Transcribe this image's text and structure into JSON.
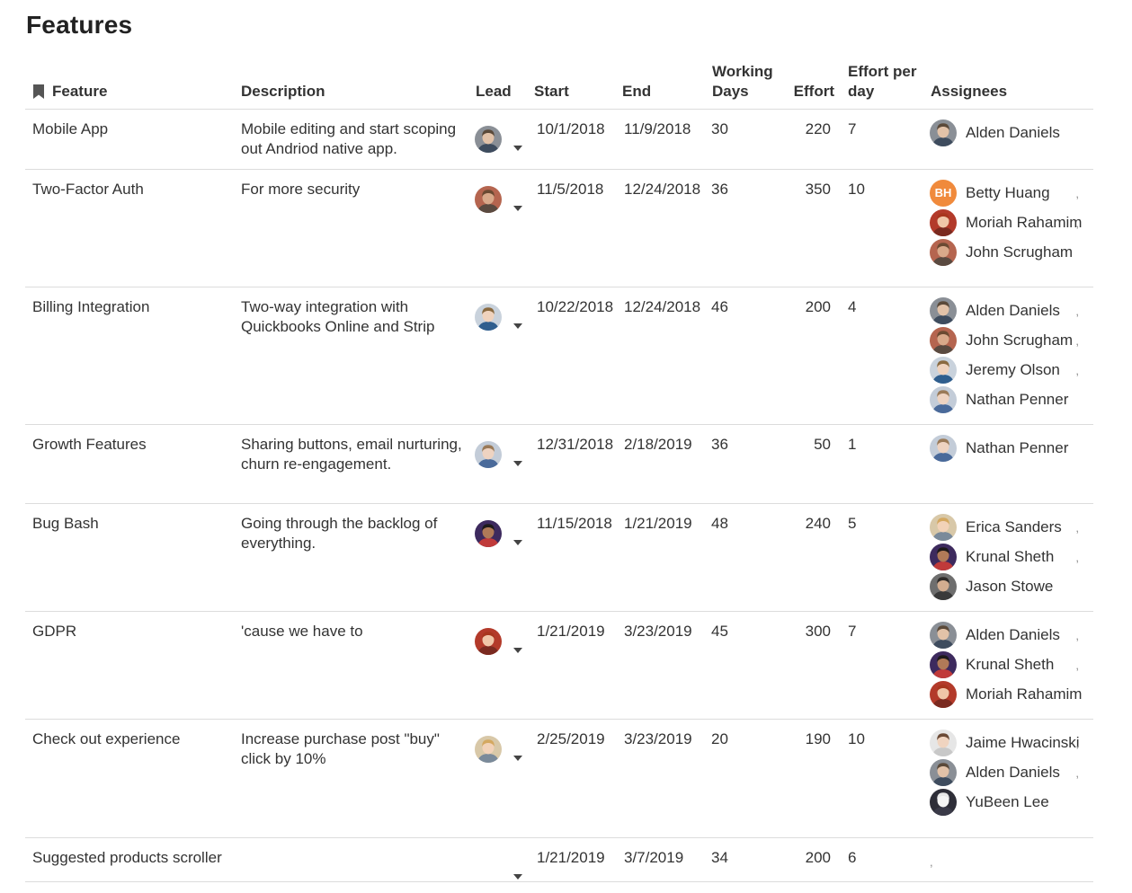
{
  "page": {
    "title": "Features"
  },
  "columns": {
    "feature": "Feature",
    "description": "Description",
    "lead": "Lead",
    "start": "Start",
    "end": "End",
    "working_days": "Working Days",
    "effort": "Effort",
    "effort_per_day": "Effort per day",
    "assignees": "Assignees"
  },
  "rows": [
    {
      "feature": "Mobile App",
      "description": "Mobile editing and start scoping out Andriod native app.",
      "lead": "alden",
      "start": "10/1/2018",
      "end": "11/9/2018",
      "working_days": "30",
      "effort": "220",
      "effort_per_day": "7",
      "assignees": [
        {
          "name": "Alden Daniels",
          "avatar": "alden"
        }
      ]
    },
    {
      "feature": "Two-Factor Auth",
      "description": "For more security",
      "lead": "john",
      "start": "11/5/2018",
      "end": "12/24/2018",
      "working_days": "36",
      "effort": "350",
      "effort_per_day": "10",
      "assignees": [
        {
          "name": "Betty Huang",
          "avatar": "initials",
          "initials": "BH"
        },
        {
          "name": "Moriah Rahamim",
          "avatar": "moriah"
        },
        {
          "name": "John Scrugham",
          "avatar": "john"
        }
      ]
    },
    {
      "feature": "Billing Integration",
      "description": "Two-way integration with Quickbooks Online and Strip",
      "lead": "jeremy",
      "start": "10/22/2018",
      "end": "12/24/2018",
      "working_days": "46",
      "effort": "200",
      "effort_per_day": "4",
      "assignees": [
        {
          "name": "Alden Daniels",
          "avatar": "alden"
        },
        {
          "name": "John Scrugham",
          "avatar": "john"
        },
        {
          "name": "Jeremy Olson",
          "avatar": "jeremy"
        },
        {
          "name": "Nathan Penner",
          "avatar": "nathan"
        }
      ]
    },
    {
      "feature": "Growth Features",
      "description": "Sharing buttons, email nurturing, churn re-engagement.",
      "lead": "nathan",
      "start": "12/31/2018",
      "end": "2/18/2019",
      "working_days": "36",
      "effort": "50",
      "effort_per_day": "1",
      "assignees": [
        {
          "name": "Nathan Penner",
          "avatar": "nathan"
        }
      ]
    },
    {
      "feature": "Bug Bash",
      "description": "Going through the backlog of everything.",
      "lead": "krunal",
      "start": "11/15/2018",
      "end": "1/21/2019",
      "working_days": "48",
      "effort": "240",
      "effort_per_day": "5",
      "assignees": [
        {
          "name": "Erica Sanders",
          "avatar": "erica"
        },
        {
          "name": "Krunal Sheth",
          "avatar": "krunal"
        },
        {
          "name": "Jason Stowe",
          "avatar": "jason"
        }
      ]
    },
    {
      "feature": "GDPR",
      "description": "'cause we have to",
      "lead": "moriah",
      "start": "1/21/2019",
      "end": "3/23/2019",
      "working_days": "45",
      "effort": "300",
      "effort_per_day": "7",
      "assignees": [
        {
          "name": "Alden Daniels",
          "avatar": "alden"
        },
        {
          "name": "Krunal Sheth",
          "avatar": "krunal"
        },
        {
          "name": "Moriah Rahamim",
          "avatar": "moriah"
        }
      ]
    },
    {
      "feature": "Check out experience",
      "description": "Increase purchase post \"buy\" click by 10%",
      "lead": "erica",
      "start": "2/25/2019",
      "end": "3/23/2019",
      "working_days": "20",
      "effort": "190",
      "effort_per_day": "10",
      "assignees": [
        {
          "name": "Jaime Hwacinski",
          "avatar": "jaime"
        },
        {
          "name": "Alden Daniels",
          "avatar": "alden"
        },
        {
          "name": "YuBeen Lee",
          "avatar": "yubeen"
        }
      ]
    },
    {
      "feature": "Suggested products scroller",
      "description": "",
      "lead": "",
      "start": "1/21/2019",
      "end": "3/7/2019",
      "working_days": "34",
      "effort": "200",
      "effort_per_day": "6",
      "assignees": []
    }
  ],
  "avatar_colors": {
    "alden": {
      "bg": "#8a8f96",
      "skin": "#e2c2a8",
      "hair": "#5b4a3a",
      "shirt": "#3e4c5e"
    },
    "john": {
      "bg": "#b5654f",
      "skin": "#d9a98a",
      "hair": "#6b4a32",
      "shirt": "#5a4a40"
    },
    "jeremy": {
      "bg": "#c9d2dc",
      "skin": "#efd2bd",
      "hair": "#8a6a40",
      "shirt": "#2f5e8e"
    },
    "nathan": {
      "bg": "#c3ccd8",
      "skin": "#eed3c1",
      "hair": "#9a7a58",
      "shirt": "#4a6a9a"
    },
    "krunal": {
      "bg": "#3d2a5e",
      "skin": "#b07a58",
      "hair": "#1e1a1a",
      "shirt": "#c03a3a"
    },
    "moriah": {
      "bg": "#b33a2a",
      "skin": "#f0c6a8",
      "hair": "#a8361e",
      "shirt": "#7a2a20"
    },
    "erica": {
      "bg": "#d8c8a8",
      "skin": "#f2d2b8",
      "hair": "#d4a860",
      "shirt": "#7a8a9a"
    },
    "jason": {
      "bg": "#6e6e6e",
      "skin": "#d3ad90",
      "hair": "#2e2a28",
      "shirt": "#3a3a3a"
    },
    "jaime": {
      "bg": "#e6e6e6",
      "skin": "#f0d4c0",
      "hair": "#6b4a36",
      "shirt": "#c8c8c8"
    },
    "yubeen": {
      "bg": "#2e2e38",
      "skin": "#f5f5f5",
      "hair": "#e8e8e8",
      "shirt": "#3a3a48"
    }
  },
  "initials_color": "#f08a3c"
}
